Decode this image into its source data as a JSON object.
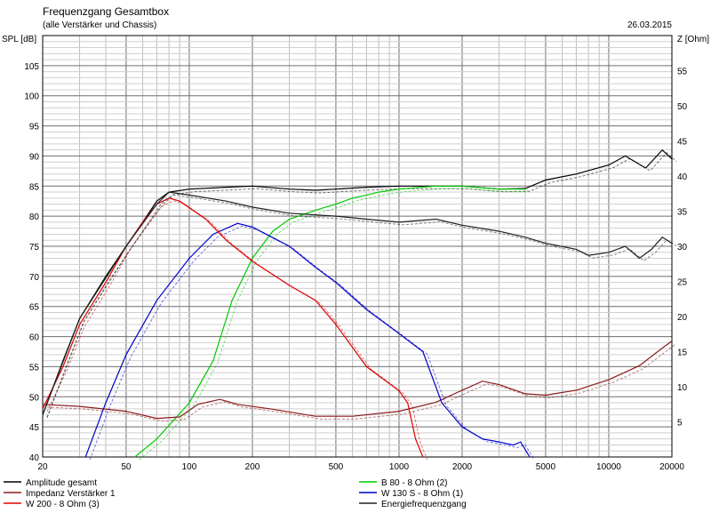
{
  "chart_data": {
    "type": "line",
    "title": "Frequenzgang Gesamtbox",
    "subtitle": "(alle Verstärker und Chassis)",
    "date": "26.03.2015",
    "ylabel_left": "SPL [dB]",
    "ylabel_right": "Z [Ohm]",
    "x_scale": "log",
    "xlim": [
      20,
      20000
    ],
    "ylim_left": [
      40,
      110
    ],
    "ylim_right": [
      0,
      60
    ],
    "grid": true,
    "x_ticks": [
      {
        "value": 20,
        "label": "20"
      },
      {
        "value": 50,
        "label": "50"
      },
      {
        "value": 100,
        "label": "100"
      },
      {
        "value": 200,
        "label": "200"
      },
      {
        "value": 500,
        "label": "500"
      },
      {
        "value": 1000,
        "label": "1000"
      },
      {
        "value": 2000,
        "label": "2000"
      },
      {
        "value": 5000,
        "label": "5000"
      },
      {
        "value": 10000,
        "label": "10000"
      },
      {
        "value": 20000,
        "label": "20000"
      }
    ],
    "y_ticks_left": [
      "40",
      "45",
      "50",
      "55",
      "60",
      "65",
      "70",
      "75",
      "80",
      "85",
      "90",
      "95",
      "100",
      "105"
    ],
    "y_ticks_right": [
      "5",
      "10",
      "15",
      "20",
      "25",
      "30",
      "35",
      "40",
      "45",
      "50",
      "55"
    ],
    "series": [
      {
        "name": "Amplitude gesamt",
        "color": "#000000",
        "axis": "left",
        "points": [
          [
            20,
            47
          ],
          [
            25,
            56
          ],
          [
            30,
            63
          ],
          [
            40,
            70
          ],
          [
            50,
            75
          ],
          [
            60,
            79
          ],
          [
            70,
            82.5
          ],
          [
            80,
            84
          ],
          [
            100,
            84.5
          ],
          [
            150,
            84.8
          ],
          [
            200,
            85
          ],
          [
            300,
            84.5
          ],
          [
            400,
            84.3
          ],
          [
            500,
            84.5
          ],
          [
            700,
            84.8
          ],
          [
            1000,
            85
          ],
          [
            1500,
            85
          ],
          [
            2000,
            85
          ],
          [
            3000,
            84.5
          ],
          [
            4000,
            84.6
          ],
          [
            5000,
            86
          ],
          [
            7000,
            87
          ],
          [
            10000,
            88.5
          ],
          [
            12000,
            90
          ],
          [
            15000,
            88
          ],
          [
            18000,
            91
          ],
          [
            20000,
            89.5
          ]
        ]
      },
      {
        "name": "B 80 - 8 Ohm (2)",
        "color": "#00cc00",
        "axis": "left",
        "points": [
          [
            55,
            40
          ],
          [
            70,
            43
          ],
          [
            100,
            49
          ],
          [
            130,
            56
          ],
          [
            160,
            66
          ],
          [
            200,
            73
          ],
          [
            250,
            77.5
          ],
          [
            300,
            79.5
          ],
          [
            400,
            81
          ],
          [
            500,
            82
          ],
          [
            600,
            83
          ],
          [
            700,
            83.5
          ],
          [
            800,
            84
          ],
          [
            1000,
            84.5
          ],
          [
            1500,
            85
          ],
          [
            2000,
            85
          ],
          [
            3000,
            84.5
          ],
          [
            4000,
            84.5
          ]
        ]
      },
      {
        "name": "Impedanz Verstärker 1",
        "color": "#8b1a1a",
        "axis": "right",
        "points": [
          [
            20,
            7.5
          ],
          [
            30,
            7.2
          ],
          [
            50,
            6.5
          ],
          [
            70,
            5.5
          ],
          [
            90,
            5.7
          ],
          [
            110,
            7.5
          ],
          [
            140,
            8.2
          ],
          [
            170,
            7.5
          ],
          [
            250,
            6.8
          ],
          [
            400,
            5.8
          ],
          [
            600,
            5.8
          ],
          [
            1000,
            6.5
          ],
          [
            1500,
            7.8
          ],
          [
            2000,
            9.5
          ],
          [
            2500,
            10.8
          ],
          [
            3000,
            10.3
          ],
          [
            4000,
            9
          ],
          [
            5000,
            8.8
          ],
          [
            7000,
            9.5
          ],
          [
            10000,
            11
          ],
          [
            14000,
            13
          ],
          [
            18000,
            15.5
          ],
          [
            20000,
            16.5
          ]
        ]
      },
      {
        "name": "W 130 S - 8 Ohm (1)",
        "color": "#0000cc",
        "axis": "left",
        "points": [
          [
            32,
            40
          ],
          [
            40,
            49
          ],
          [
            50,
            57
          ],
          [
            70,
            66
          ],
          [
            100,
            73
          ],
          [
            130,
            77
          ],
          [
            170,
            78.8
          ],
          [
            200,
            78.2
          ],
          [
            300,
            75
          ],
          [
            400,
            71.5
          ],
          [
            500,
            69
          ],
          [
            700,
            64.5
          ],
          [
            1000,
            60.5
          ],
          [
            1300,
            57.5
          ],
          [
            1600,
            49
          ],
          [
            2000,
            45
          ],
          [
            2500,
            43
          ],
          [
            3000,
            42.5
          ],
          [
            3500,
            42
          ],
          [
            3800,
            42.5
          ],
          [
            4200,
            40
          ]
        ]
      },
      {
        "name": "W 200 - 8 Ohm (3)",
        "color": "#dd0000",
        "axis": "left",
        "points": [
          [
            20,
            48
          ],
          [
            25,
            55
          ],
          [
            30,
            62
          ],
          [
            40,
            69
          ],
          [
            50,
            75
          ],
          [
            60,
            79
          ],
          [
            70,
            82
          ],
          [
            80,
            83
          ],
          [
            90,
            82.5
          ],
          [
            120,
            79.5
          ],
          [
            150,
            76
          ],
          [
            200,
            72.5
          ],
          [
            300,
            68.5
          ],
          [
            400,
            66
          ],
          [
            500,
            62
          ],
          [
            700,
            55
          ],
          [
            1000,
            51
          ],
          [
            1100,
            49
          ],
          [
            1200,
            43
          ],
          [
            1300,
            40
          ]
        ]
      },
      {
        "name": "Energiefrequenzgang",
        "color": "#202020",
        "axis": "left",
        "points": [
          [
            20,
            47
          ],
          [
            30,
            63
          ],
          [
            50,
            75
          ],
          [
            70,
            82
          ],
          [
            80,
            84
          ],
          [
            100,
            83.5
          ],
          [
            150,
            82.5
          ],
          [
            200,
            81.5
          ],
          [
            300,
            80.5
          ],
          [
            500,
            80
          ],
          [
            700,
            79.5
          ],
          [
            1000,
            79
          ],
          [
            1500,
            79.5
          ],
          [
            2000,
            78.5
          ],
          [
            3000,
            77.5
          ],
          [
            4000,
            76.5
          ],
          [
            5000,
            75.5
          ],
          [
            7000,
            74.5
          ],
          [
            8000,
            73.5
          ],
          [
            10000,
            74
          ],
          [
            12000,
            75
          ],
          [
            14000,
            73
          ],
          [
            16000,
            74.5
          ],
          [
            18000,
            76.5
          ],
          [
            20000,
            75.5
          ]
        ]
      }
    ],
    "legend_placement": "bottom"
  }
}
